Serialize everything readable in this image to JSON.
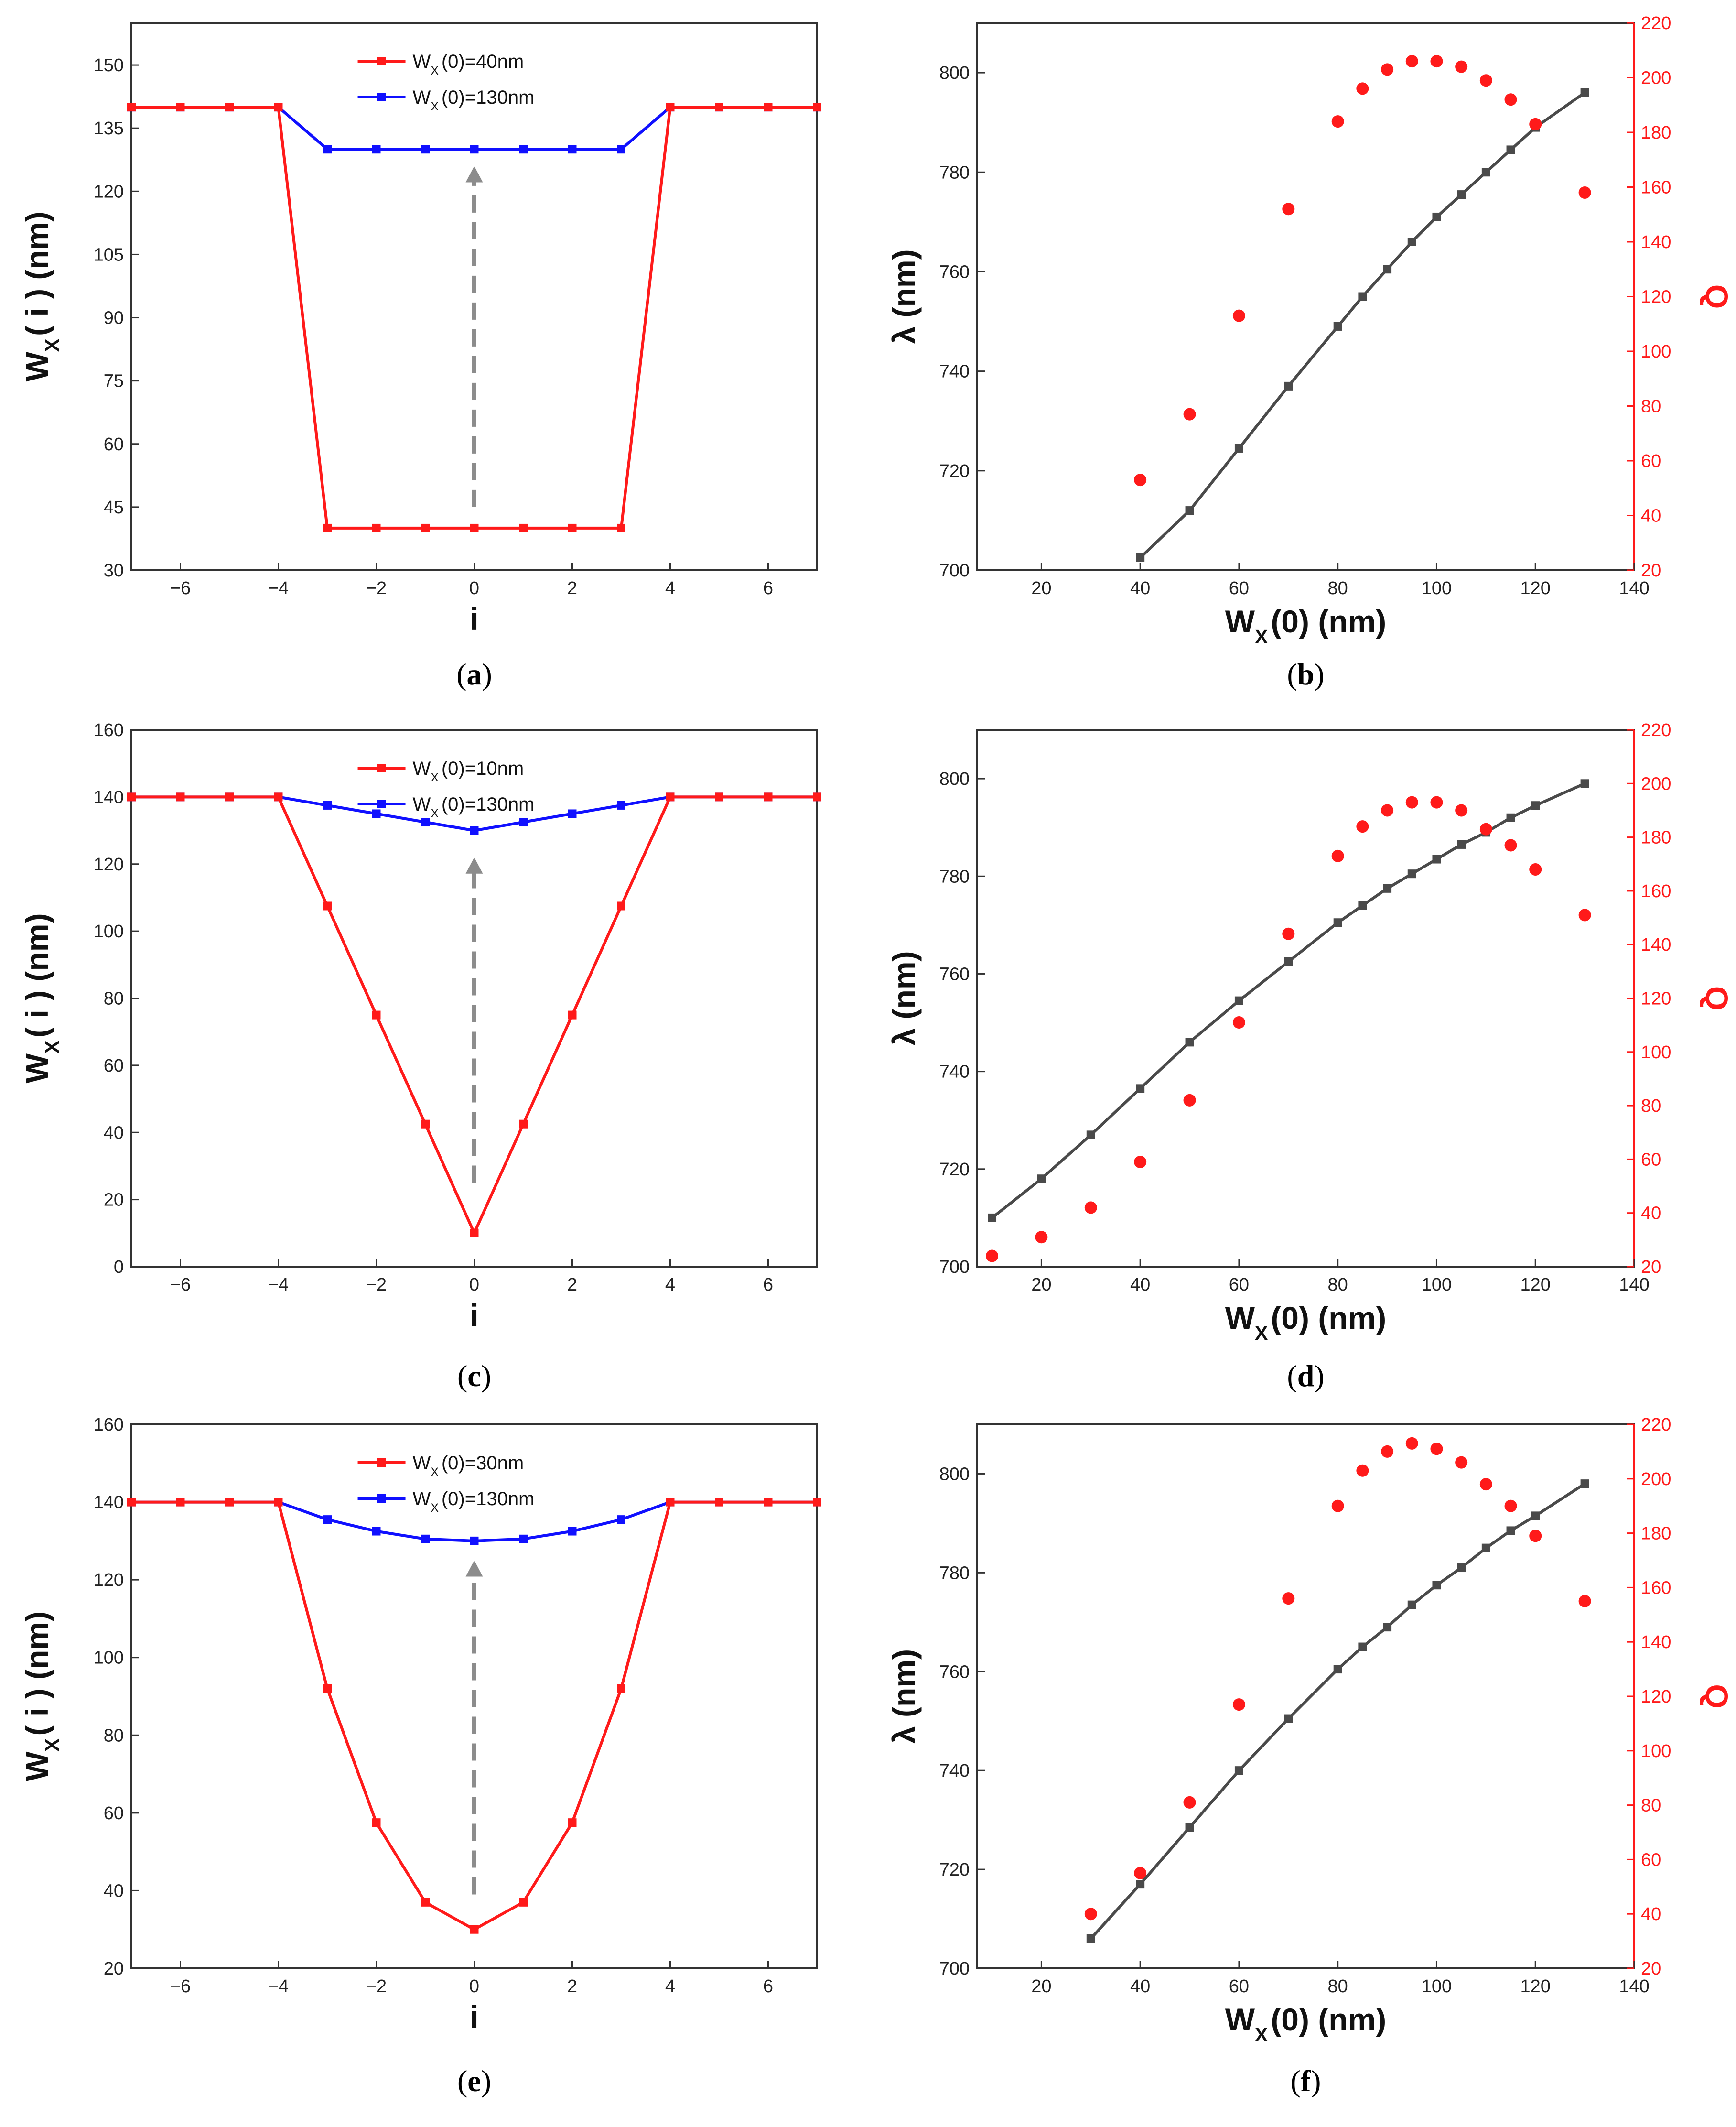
{
  "figure": {
    "panels_caption": [
      "a",
      "b",
      "c",
      "d",
      "e",
      "f"
    ]
  },
  "colors": {
    "red": "#ff1a1a",
    "blue": "#1010ff",
    "gray_line": "#4a4a4a",
    "arrow": "#8c8c8c",
    "axis": "#333333"
  },
  "chart_data": [
    {
      "panel": "a",
      "type": "line",
      "xlabel": "i",
      "ylabel": "W_X(i) (nm)",
      "ylabel_parts": {
        "main": "W",
        "sub": "X",
        "rest": "( i ) (nm)"
      },
      "xlim": [
        -7,
        7
      ],
      "ylim": [
        30,
        160
      ],
      "xticks": [
        -6,
        -4,
        -2,
        0,
        2,
        4,
        6
      ],
      "xtick_labels": [
        "−6",
        "−4",
        "−2",
        "0",
        "2",
        "4",
        "6"
      ],
      "yticks": [
        30,
        45,
        60,
        75,
        90,
        105,
        120,
        135,
        150
      ],
      "ytick_labels": [
        "30",
        "45",
        "60",
        "75",
        "90",
        "105",
        "120",
        "135",
        "150"
      ],
      "x": [
        -7,
        -6,
        -5,
        -4,
        -3,
        -2,
        -1,
        0,
        1,
        2,
        3,
        4,
        5,
        6,
        7
      ],
      "series": [
        {
          "name": "W_X(0)=40nm",
          "legend_parts": {
            "main": "W",
            "sub": "X",
            "rest": "(0)=40nm"
          },
          "color": "red",
          "values": [
            140,
            140,
            140,
            140,
            40,
            40,
            40,
            40,
            40,
            40,
            40,
            140,
            140,
            140,
            140
          ]
        },
        {
          "name": "W_X(0)=130nm",
          "legend_parts": {
            "main": "W",
            "sub": "X",
            "rest": "(0)=130nm"
          },
          "color": "blue",
          "values": [
            140,
            140,
            140,
            140,
            130,
            130,
            130,
            130,
            130,
            130,
            130,
            140,
            140,
            140,
            140
          ]
        }
      ],
      "arrow": {
        "x": 0,
        "from": 45,
        "to": 126
      }
    },
    {
      "panel": "b",
      "type": "line+scatter",
      "xlabel": "W_X(0) (nm)",
      "xlabel_parts": {
        "main": "W",
        "sub": "X",
        "rest": "(0) (nm)"
      },
      "ylabel": "λ (nm)",
      "y2label": "Q",
      "xlim": [
        7,
        140
      ],
      "ylim": [
        700,
        810
      ],
      "y2lim": [
        20,
        220
      ],
      "xticks": [
        20,
        40,
        60,
        80,
        100,
        120,
        140
      ],
      "xtick_labels": [
        "20",
        "40",
        "60",
        "80",
        "100",
        "120",
        "140"
      ],
      "yticks": [
        700,
        720,
        740,
        760,
        780,
        800
      ],
      "ytick_labels": [
        "700",
        "720",
        "740",
        "760",
        "780",
        "800"
      ],
      "y2ticks": [
        20,
        40,
        60,
        80,
        100,
        120,
        140,
        160,
        180,
        200,
        220
      ],
      "y2tick_labels": [
        "20",
        "40",
        "60",
        "80",
        "100",
        "120",
        "140",
        "160",
        "180",
        "200",
        "220"
      ],
      "series": [
        {
          "name": "lambda",
          "color": "gray_line",
          "axis": "left",
          "x": [
            40,
            50,
            60,
            70,
            80,
            85,
            90,
            95,
            100,
            105,
            110,
            115,
            120,
            130
          ],
          "values": [
            702.5,
            712,
            724.5,
            737,
            749,
            755,
            760.5,
            766,
            771,
            775.5,
            780,
            784.5,
            789,
            796
          ]
        },
        {
          "name": "Q",
          "color": "red",
          "axis": "right",
          "x": [
            40,
            50,
            60,
            70,
            80,
            85,
            90,
            95,
            100,
            105,
            110,
            115,
            120,
            130
          ],
          "values": [
            53,
            77,
            113,
            152,
            184,
            196,
            203,
            206,
            206,
            204,
            199,
            192,
            183,
            158
          ]
        }
      ]
    },
    {
      "panel": "c",
      "type": "line",
      "xlabel": "i",
      "ylabel": "W_X(i) (nm)",
      "ylabel_parts": {
        "main": "W",
        "sub": "X",
        "rest": "( i ) (nm)"
      },
      "xlim": [
        -7,
        7
      ],
      "ylim": [
        0,
        160
      ],
      "xticks": [
        -6,
        -4,
        -2,
        0,
        2,
        4,
        6
      ],
      "xtick_labels": [
        "−6",
        "−4",
        "−2",
        "0",
        "2",
        "4",
        "6"
      ],
      "yticks": [
        0,
        20,
        40,
        60,
        80,
        100,
        120,
        140,
        160
      ],
      "ytick_labels": [
        "0",
        "20",
        "40",
        "60",
        "80",
        "100",
        "120",
        "140",
        "160"
      ],
      "x": [
        -7,
        -6,
        -5,
        -4,
        -3,
        -2,
        -1,
        0,
        1,
        2,
        3,
        4,
        5,
        6,
        7
      ],
      "series": [
        {
          "name": "W_X(0)=10nm",
          "legend_parts": {
            "main": "W",
            "sub": "X",
            "rest": "(0)=10nm"
          },
          "color": "red",
          "values": [
            140,
            140,
            140,
            140,
            107.5,
            75,
            42.5,
            10,
            42.5,
            75,
            107.5,
            140,
            140,
            140,
            140
          ]
        },
        {
          "name": "W_X(0)=130nm",
          "legend_parts": {
            "main": "W",
            "sub": "X",
            "rest": "(0)=130nm"
          },
          "color": "blue",
          "values": [
            140,
            140,
            140,
            140,
            137.5,
            135,
            132.5,
            130,
            132.5,
            135,
            137.5,
            140,
            140,
            140,
            140
          ]
        }
      ],
      "arrow": {
        "x": 0,
        "from": 25,
        "to": 122
      }
    },
    {
      "panel": "d",
      "type": "line+scatter",
      "xlabel": "W_X(0) (nm)",
      "xlabel_parts": {
        "main": "W",
        "sub": "X",
        "rest": "(0) (nm)"
      },
      "ylabel": "λ (nm)",
      "y2label": "Q",
      "xlim": [
        7,
        140
      ],
      "ylim": [
        700,
        810
      ],
      "y2lim": [
        20,
        220
      ],
      "xticks": [
        20,
        40,
        60,
        80,
        100,
        120,
        140
      ],
      "xtick_labels": [
        "20",
        "40",
        "60",
        "80",
        "100",
        "120",
        "140"
      ],
      "yticks": [
        700,
        720,
        740,
        760,
        780,
        800
      ],
      "ytick_labels": [
        "700",
        "720",
        "740",
        "760",
        "780",
        "800"
      ],
      "y2ticks": [
        20,
        40,
        60,
        80,
        100,
        120,
        140,
        160,
        180,
        200,
        220
      ],
      "y2tick_labels": [
        "20",
        "40",
        "60",
        "80",
        "100",
        "120",
        "140",
        "160",
        "180",
        "200",
        "220"
      ],
      "series": [
        {
          "name": "lambda",
          "color": "gray_line",
          "axis": "left",
          "x": [
            10,
            20,
            30,
            40,
            50,
            60,
            70,
            80,
            85,
            90,
            95,
            100,
            105,
            110,
            115,
            120,
            130
          ],
          "values": [
            710,
            718,
            727,
            736.5,
            746,
            754.5,
            762.5,
            770.5,
            774,
            777.5,
            780.5,
            783.5,
            786.5,
            789,
            792,
            794.5,
            799
          ]
        },
        {
          "name": "Q",
          "color": "red",
          "axis": "right",
          "x": [
            10,
            20,
            30,
            40,
            50,
            60,
            70,
            80,
            85,
            90,
            95,
            100,
            105,
            110,
            115,
            120,
            130
          ],
          "values": [
            24,
            31,
            42,
            59,
            82,
            111,
            144,
            173,
            184,
            190,
            193,
            193,
            190,
            183,
            177,
            168,
            151
          ]
        }
      ]
    },
    {
      "panel": "e",
      "type": "line",
      "xlabel": "i",
      "ylabel": "W_X(i) (nm)",
      "ylabel_parts": {
        "main": "W",
        "sub": "X",
        "rest": "( i ) (nm)"
      },
      "xlim": [
        -7,
        7
      ],
      "ylim": [
        20,
        160
      ],
      "xticks": [
        -6,
        -4,
        -2,
        0,
        2,
        4,
        6
      ],
      "xtick_labels": [
        "−6",
        "−4",
        "−2",
        "0",
        "2",
        "4",
        "6"
      ],
      "yticks": [
        20,
        40,
        60,
        80,
        100,
        120,
        140,
        160
      ],
      "ytick_labels": [
        "20",
        "40",
        "60",
        "80",
        "100",
        "120",
        "140",
        "160"
      ],
      "x": [
        -7,
        -6,
        -5,
        -4,
        -3,
        -2,
        -1,
        0,
        1,
        2,
        3,
        4,
        5,
        6,
        7
      ],
      "series": [
        {
          "name": "W_X(0)=30nm",
          "legend_parts": {
            "main": "W",
            "sub": "X",
            "rest": "(0)=30nm"
          },
          "color": "red",
          "values": [
            140,
            140,
            140,
            140,
            92,
            57.5,
            37,
            30,
            37,
            57.5,
            92,
            140,
            140,
            140,
            140
          ]
        },
        {
          "name": "W_X(0)=130nm",
          "legend_parts": {
            "main": "W",
            "sub": "X",
            "rest": "(0)=130nm"
          },
          "color": "blue",
          "values": [
            140,
            140,
            140,
            140,
            135.5,
            132.5,
            130.5,
            130,
            130.5,
            132.5,
            135.5,
            140,
            140,
            140,
            140
          ]
        }
      ],
      "arrow": {
        "x": 0,
        "from": 39,
        "to": 125
      }
    },
    {
      "panel": "f",
      "type": "line+scatter",
      "xlabel": "W_X(0) (nm)",
      "xlabel_parts": {
        "main": "W",
        "sub": "X",
        "rest": "(0) (nm)"
      },
      "ylabel": "λ (nm)",
      "y2label": "Q",
      "xlim": [
        7,
        140
      ],
      "ylim": [
        700,
        810
      ],
      "y2lim": [
        20,
        220
      ],
      "xticks": [
        20,
        40,
        60,
        80,
        100,
        120,
        140
      ],
      "xtick_labels": [
        "20",
        "40",
        "60",
        "80",
        "100",
        "120",
        "140"
      ],
      "yticks": [
        700,
        720,
        740,
        760,
        780,
        800
      ],
      "ytick_labels": [
        "700",
        "720",
        "740",
        "760",
        "780",
        "800"
      ],
      "y2ticks": [
        20,
        40,
        60,
        80,
        100,
        120,
        140,
        160,
        180,
        200,
        220
      ],
      "y2tick_labels": [
        "20",
        "40",
        "60",
        "80",
        "100",
        "120",
        "140",
        "160",
        "180",
        "200",
        "220"
      ],
      "series": [
        {
          "name": "lambda",
          "color": "gray_line",
          "axis": "left",
          "x": [
            30,
            40,
            50,
            60,
            70,
            80,
            85,
            90,
            95,
            100,
            105,
            110,
            115,
            120,
            130
          ],
          "values": [
            706,
            717,
            728.5,
            740,
            750.5,
            760.5,
            765,
            769,
            773.5,
            777.5,
            781,
            785,
            788.5,
            791.5,
            798
          ]
        },
        {
          "name": "Q",
          "color": "red",
          "axis": "right",
          "x": [
            30,
            40,
            50,
            60,
            70,
            80,
            85,
            90,
            95,
            100,
            105,
            110,
            115,
            120,
            130
          ],
          "values": [
            40,
            55,
            81,
            117,
            156,
            190,
            203,
            210,
            213,
            211,
            206,
            198,
            190,
            179,
            155
          ]
        }
      ]
    }
  ]
}
